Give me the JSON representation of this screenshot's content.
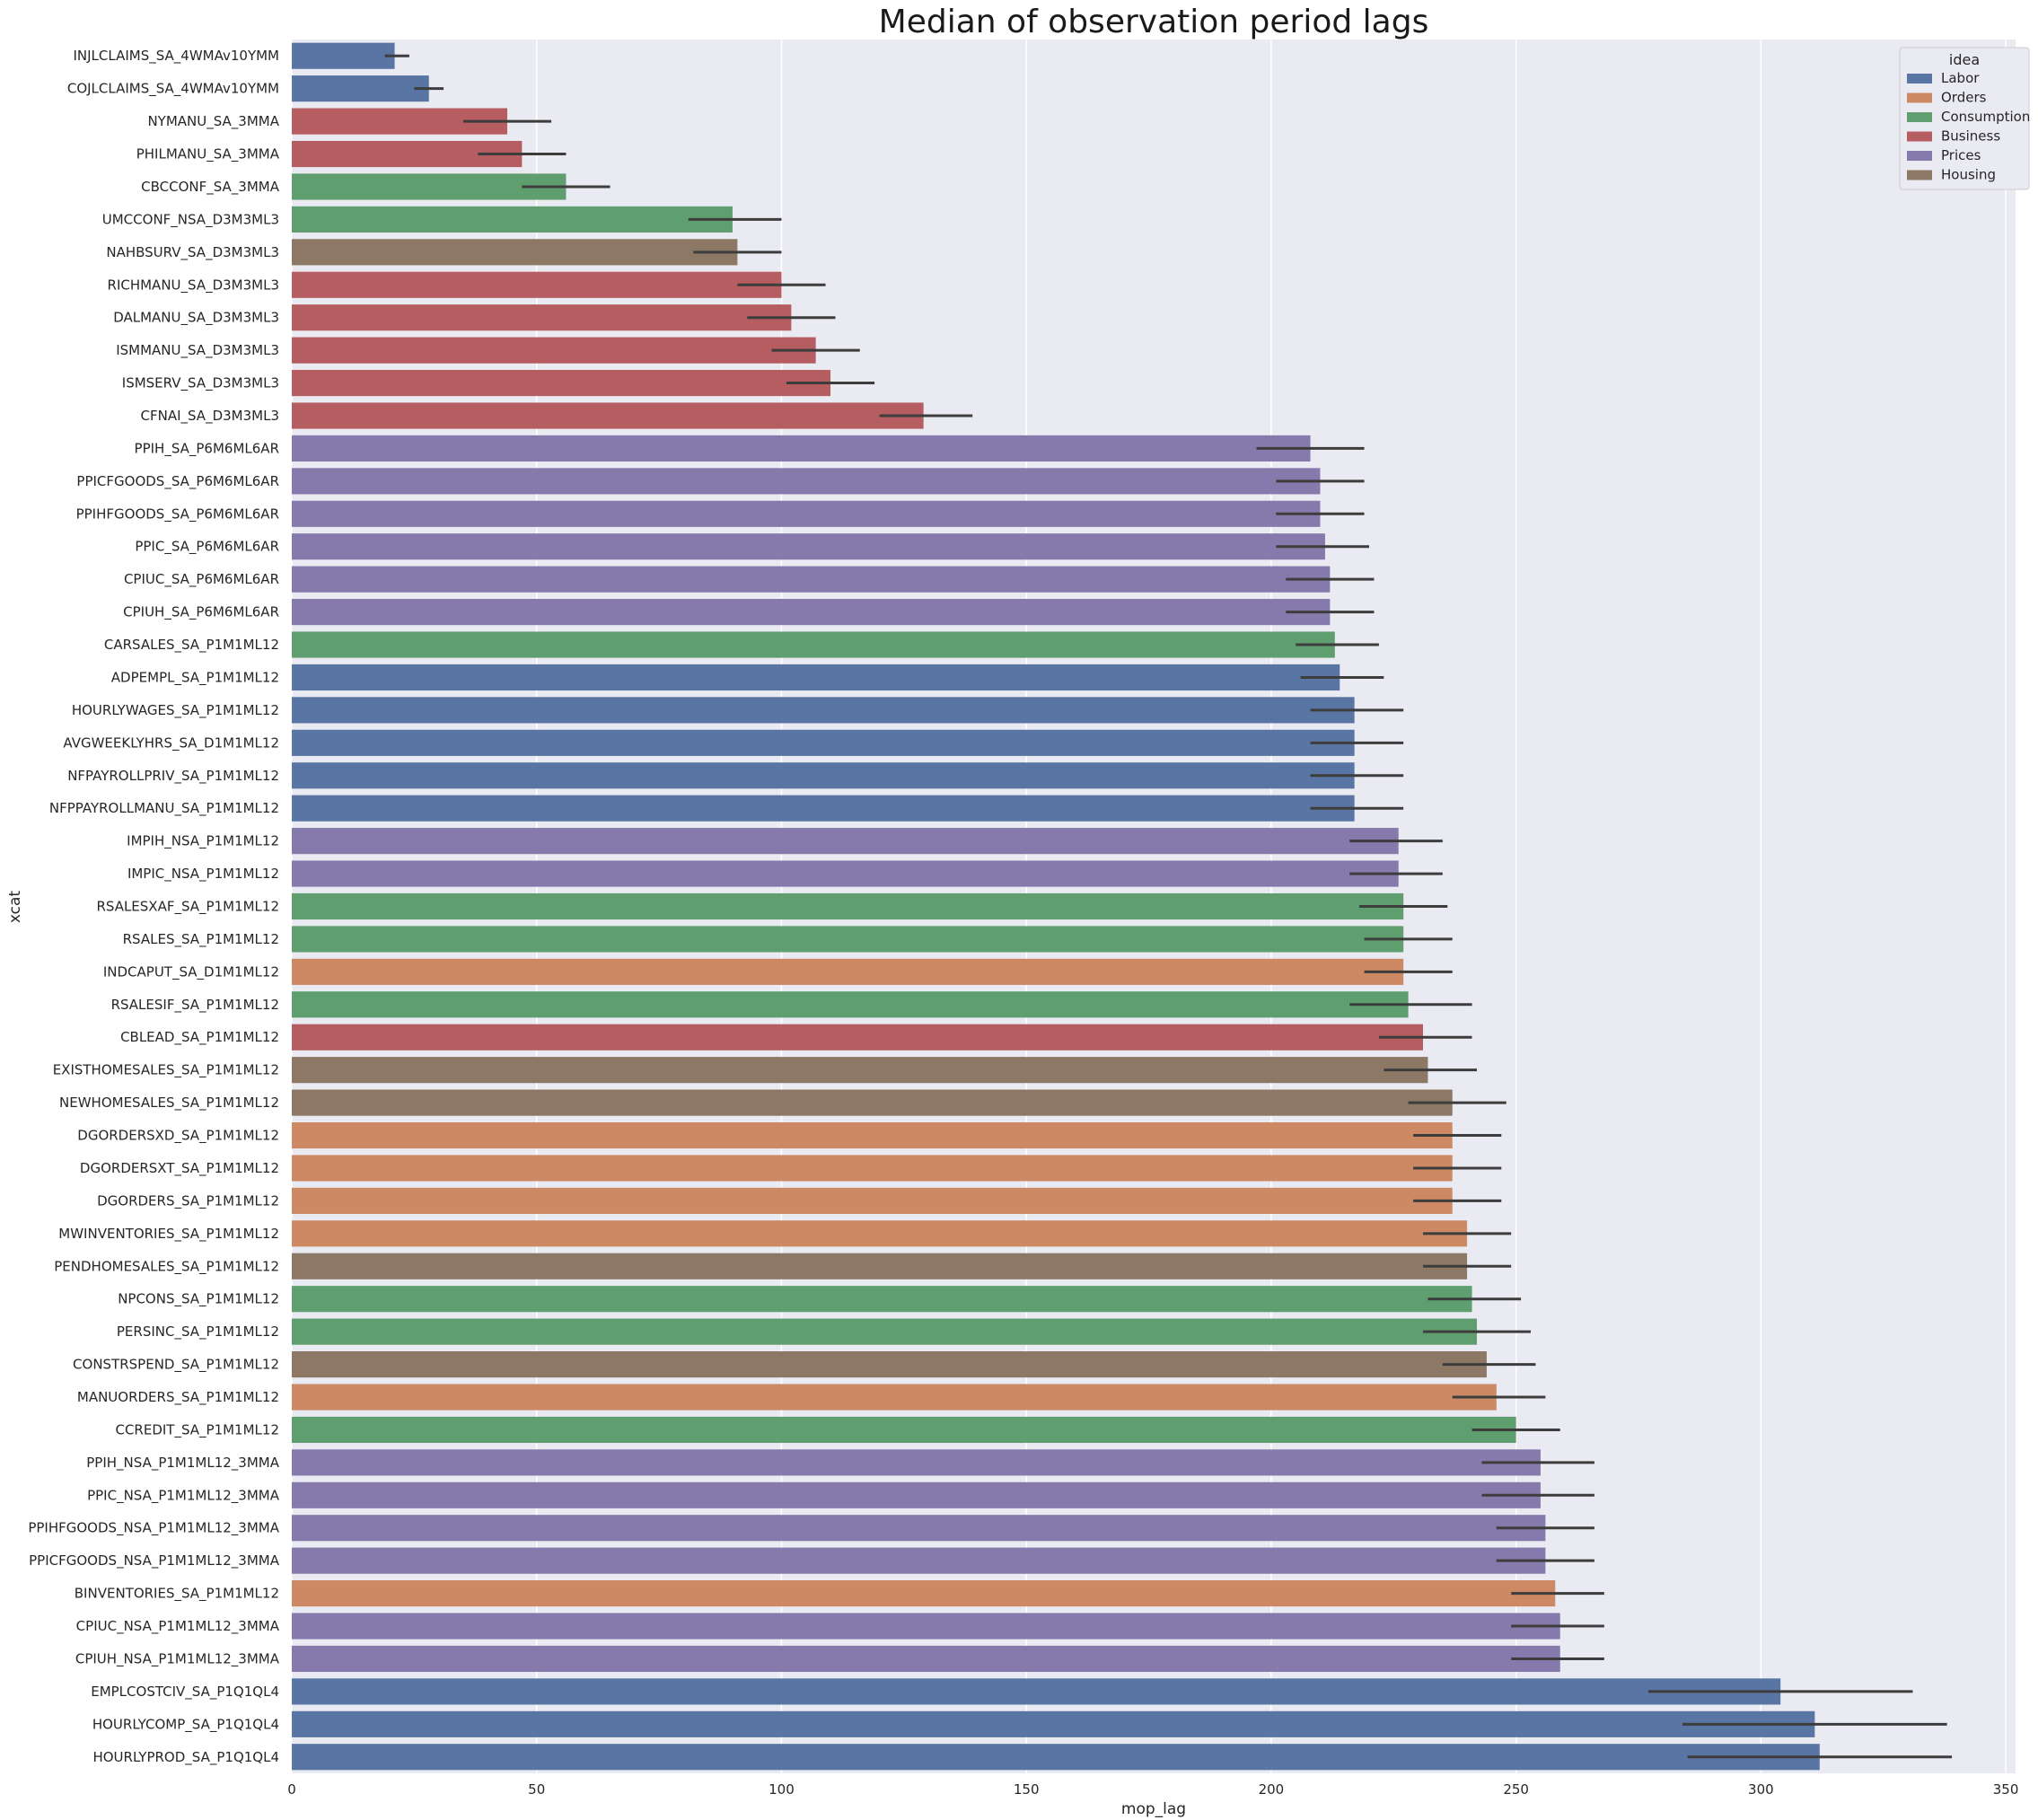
{
  "chart_data": {
    "type": "bar",
    "orientation": "horizontal",
    "title": "Median of observation period lags",
    "xlabel": "mop_lag",
    "ylabel": "xcat",
    "xlim": [
      0,
      352
    ],
    "xticks": [
      0,
      50,
      100,
      150,
      200,
      250,
      300,
      350
    ],
    "grid": true,
    "legend": {
      "title": "idea",
      "position": "top-right",
      "entries": [
        "Labor",
        "Orders",
        "Consumption",
        "Business",
        "Prices",
        "Housing"
      ]
    },
    "colors": {
      "Labor": "#5975a4",
      "Orders": "#cc8963",
      "Consumption": "#5f9e6e",
      "Business": "#b55d60",
      "Prices": "#857aab",
      "Housing": "#8d7866"
    },
    "bars": [
      {
        "label": "INJLCLAIMS_SA_4WMAv10YMM",
        "category": "Labor",
        "value": 21,
        "err": [
          19,
          24
        ]
      },
      {
        "label": "COJLCLAIMS_SA_4WMAv10YMM",
        "category": "Labor",
        "value": 28,
        "err": [
          25,
          31
        ]
      },
      {
        "label": "NYMANU_SA_3MMA",
        "category": "Business",
        "value": 44,
        "err": [
          35,
          53
        ]
      },
      {
        "label": "PHILMANU_SA_3MMA",
        "category": "Business",
        "value": 47,
        "err": [
          38,
          56
        ]
      },
      {
        "label": "CBCCONF_SA_3MMA",
        "category": "Consumption",
        "value": 56,
        "err": [
          47,
          65
        ]
      },
      {
        "label": "UMCCONF_NSA_D3M3ML3",
        "category": "Consumption",
        "value": 90,
        "err": [
          81,
          100
        ]
      },
      {
        "label": "NAHBSURV_SA_D3M3ML3",
        "category": "Housing",
        "value": 91,
        "err": [
          82,
          100
        ]
      },
      {
        "label": "RICHMANU_SA_D3M3ML3",
        "category": "Business",
        "value": 100,
        "err": [
          91,
          109
        ]
      },
      {
        "label": "DALMANU_SA_D3M3ML3",
        "category": "Business",
        "value": 102,
        "err": [
          93,
          111
        ]
      },
      {
        "label": "ISMMANU_SA_D3M3ML3",
        "category": "Business",
        "value": 107,
        "err": [
          98,
          116
        ]
      },
      {
        "label": "ISMSERV_SA_D3M3ML3",
        "category": "Business",
        "value": 110,
        "err": [
          101,
          119
        ]
      },
      {
        "label": "CFNAI_SA_D3M3ML3",
        "category": "Business",
        "value": 129,
        "err": [
          120,
          139
        ]
      },
      {
        "label": "PPIH_SA_P6M6ML6AR",
        "category": "Prices",
        "value": 208,
        "err": [
          197,
          219
        ]
      },
      {
        "label": "PPICFGOODS_SA_P6M6ML6AR",
        "category": "Prices",
        "value": 210,
        "err": [
          201,
          219
        ]
      },
      {
        "label": "PPIHFGOODS_SA_P6M6ML6AR",
        "category": "Prices",
        "value": 210,
        "err": [
          201,
          219
        ]
      },
      {
        "label": "PPIC_SA_P6M6ML6AR",
        "category": "Prices",
        "value": 211,
        "err": [
          201,
          220
        ]
      },
      {
        "label": "CPIUC_SA_P6M6ML6AR",
        "category": "Prices",
        "value": 212,
        "err": [
          203,
          221
        ]
      },
      {
        "label": "CPIUH_SA_P6M6ML6AR",
        "category": "Prices",
        "value": 212,
        "err": [
          203,
          221
        ]
      },
      {
        "label": "CARSALES_SA_P1M1ML12",
        "category": "Consumption",
        "value": 213,
        "err": [
          205,
          222
        ]
      },
      {
        "label": "ADPEMPL_SA_P1M1ML12",
        "category": "Labor",
        "value": 214,
        "err": [
          206,
          223
        ]
      },
      {
        "label": "HOURLYWAGES_SA_P1M1ML12",
        "category": "Labor",
        "value": 217,
        "err": [
          208,
          227
        ]
      },
      {
        "label": "AVGWEEKLYHRS_SA_D1M1ML12",
        "category": "Labor",
        "value": 217,
        "err": [
          208,
          227
        ]
      },
      {
        "label": "NFPAYROLLPRIV_SA_P1M1ML12",
        "category": "Labor",
        "value": 217,
        "err": [
          208,
          227
        ]
      },
      {
        "label": "NFPPAYROLLMANU_SA_P1M1ML12",
        "category": "Labor",
        "value": 217,
        "err": [
          208,
          227
        ]
      },
      {
        "label": "IMPIH_NSA_P1M1ML12",
        "category": "Prices",
        "value": 226,
        "err": [
          216,
          235
        ]
      },
      {
        "label": "IMPIC_NSA_P1M1ML12",
        "category": "Prices",
        "value": 226,
        "err": [
          216,
          235
        ]
      },
      {
        "label": "RSALESXAF_SA_P1M1ML12",
        "category": "Consumption",
        "value": 227,
        "err": [
          218,
          236
        ]
      },
      {
        "label": "RSALES_SA_P1M1ML12",
        "category": "Consumption",
        "value": 227,
        "err": [
          219,
          237
        ]
      },
      {
        "label": "INDCAPUT_SA_D1M1ML12",
        "category": "Orders",
        "value": 227,
        "err": [
          219,
          237
        ]
      },
      {
        "label": "RSALESIF_SA_P1M1ML12",
        "category": "Consumption",
        "value": 228,
        "err": [
          216,
          241
        ]
      },
      {
        "label": "CBLEAD_SA_P1M1ML12",
        "category": "Business",
        "value": 231,
        "err": [
          222,
          241
        ]
      },
      {
        "label": "EXISTHOMESALES_SA_P1M1ML12",
        "category": "Housing",
        "value": 232,
        "err": [
          223,
          242
        ]
      },
      {
        "label": "NEWHOMESALES_SA_P1M1ML12",
        "category": "Housing",
        "value": 237,
        "err": [
          228,
          248
        ]
      },
      {
        "label": "DGORDERSXD_SA_P1M1ML12",
        "category": "Orders",
        "value": 237,
        "err": [
          229,
          247
        ]
      },
      {
        "label": "DGORDERSXT_SA_P1M1ML12",
        "category": "Orders",
        "value": 237,
        "err": [
          229,
          247
        ]
      },
      {
        "label": "DGORDERS_SA_P1M1ML12",
        "category": "Orders",
        "value": 237,
        "err": [
          229,
          247
        ]
      },
      {
        "label": "MWINVENTORIES_SA_P1M1ML12",
        "category": "Orders",
        "value": 240,
        "err": [
          231,
          249
        ]
      },
      {
        "label": "PENDHOMESALES_SA_P1M1ML12",
        "category": "Housing",
        "value": 240,
        "err": [
          231,
          249
        ]
      },
      {
        "label": "NPCONS_SA_P1M1ML12",
        "category": "Consumption",
        "value": 241,
        "err": [
          232,
          251
        ]
      },
      {
        "label": "PERSINC_SA_P1M1ML12",
        "category": "Consumption",
        "value": 242,
        "err": [
          231,
          253
        ]
      },
      {
        "label": "CONSTRSPEND_SA_P1M1ML12",
        "category": "Housing",
        "value": 244,
        "err": [
          235,
          254
        ]
      },
      {
        "label": "MANUORDERS_SA_P1M1ML12",
        "category": "Orders",
        "value": 246,
        "err": [
          237,
          256
        ]
      },
      {
        "label": "CCREDIT_SA_P1M1ML12",
        "category": "Consumption",
        "value": 250,
        "err": [
          241,
          259
        ]
      },
      {
        "label": "PPIH_NSA_P1M1ML12_3MMA",
        "category": "Prices",
        "value": 255,
        "err": [
          243,
          266
        ]
      },
      {
        "label": "PPIC_NSA_P1M1ML12_3MMA",
        "category": "Prices",
        "value": 255,
        "err": [
          243,
          266
        ]
      },
      {
        "label": "PPIHFGOODS_NSA_P1M1ML12_3MMA",
        "category": "Prices",
        "value": 256,
        "err": [
          246,
          266
        ]
      },
      {
        "label": "PPICFGOODS_NSA_P1M1ML12_3MMA",
        "category": "Prices",
        "value": 256,
        "err": [
          246,
          266
        ]
      },
      {
        "label": "BINVENTORIES_SA_P1M1ML12",
        "category": "Orders",
        "value": 258,
        "err": [
          249,
          268
        ]
      },
      {
        "label": "CPIUC_NSA_P1M1ML12_3MMA",
        "category": "Prices",
        "value": 259,
        "err": [
          249,
          268
        ]
      },
      {
        "label": "CPIUH_NSA_P1M1ML12_3MMA",
        "category": "Prices",
        "value": 259,
        "err": [
          249,
          268
        ]
      },
      {
        "label": "EMPLCOSTCIV_SA_P1Q1QL4",
        "category": "Labor",
        "value": 304,
        "err": [
          277,
          331
        ]
      },
      {
        "label": "HOURLYCOMP_SA_P1Q1QL4",
        "category": "Labor",
        "value": 311,
        "err": [
          284,
          338
        ]
      },
      {
        "label": "HOURLYPROD_SA_P1Q1QL4",
        "category": "Labor",
        "value": 312,
        "err": [
          285,
          339
        ]
      }
    ]
  }
}
